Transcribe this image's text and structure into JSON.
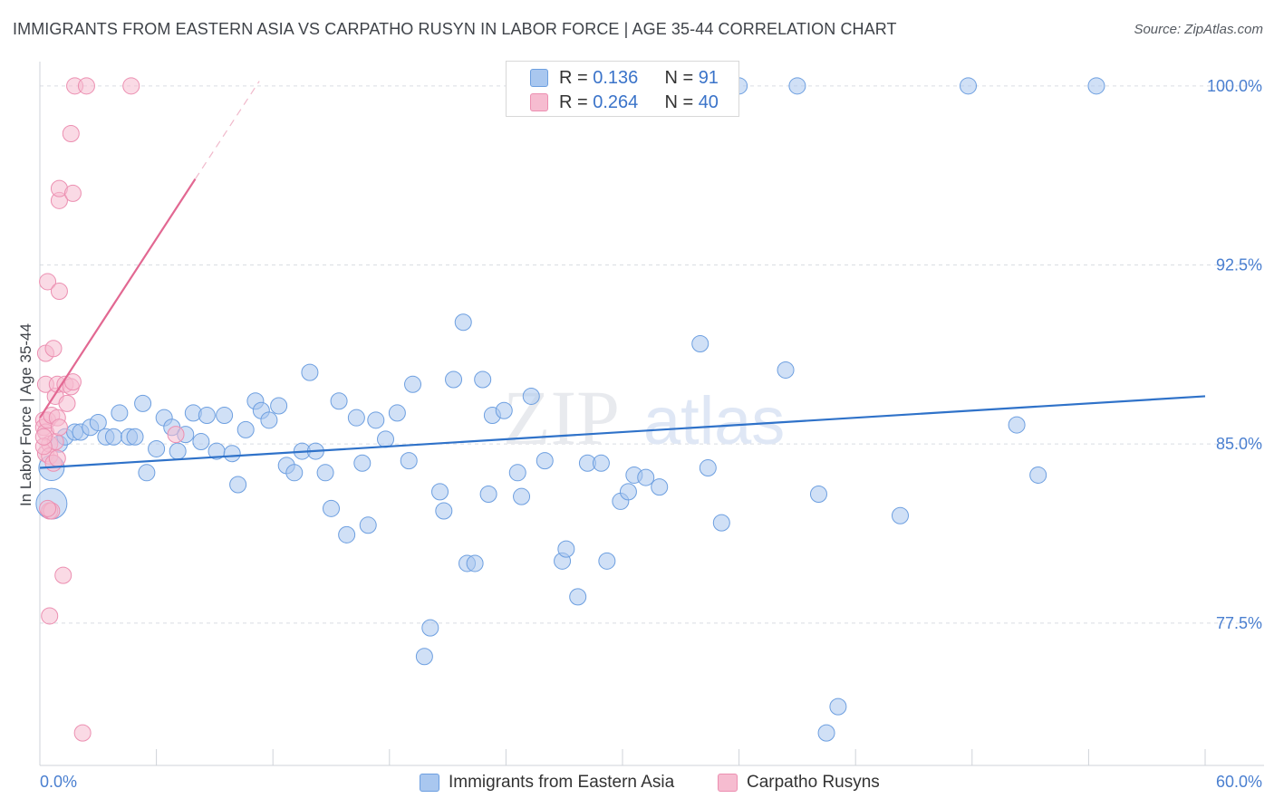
{
  "title": "IMMIGRANTS FROM EASTERN ASIA VS CARPATHO RUSYN IN LABOR FORCE | AGE 35-44 CORRELATION CHART",
  "source": "Source: ZipAtlas.com",
  "watermark": "ZIPatlas",
  "colors": {
    "blue_fill": "#a9c7ef",
    "blue_stroke": "#6d9fe0",
    "blue_line": "#2f72c9",
    "pink_fill": "#f6bcd0",
    "pink_stroke": "#ec8fb1",
    "pink_line": "#e26892",
    "grid": "#d9dde3",
    "tick_text": "#4a7fd0"
  },
  "legend_top": {
    "rows": [
      {
        "r_label": "R =",
        "r_value": "0.136",
        "n_label": "N =",
        "n_value": "91",
        "series": "blue"
      },
      {
        "r_label": "R =",
        "r_value": "0.264",
        "n_label": "N =",
        "n_value": "40",
        "series": "pink"
      }
    ]
  },
  "legend_bottom": {
    "items": [
      {
        "label": "Immigrants from Eastern Asia",
        "series": "blue"
      },
      {
        "label": "Carpatho Rusyns",
        "series": "pink"
      }
    ]
  },
  "chart_data": {
    "type": "scatter",
    "title": "IMMIGRANTS FROM EASTERN ASIA VS CARPATHO RUSYN IN LABOR FORCE | AGE 35-44 CORRELATION CHART",
    "xlabel": "",
    "ylabel": "In Labor Force | Age 35-44",
    "xlim": [
      0,
      60
    ],
    "ylim": [
      71.5,
      100.6
    ],
    "x_tick_labels": [
      "0.0%",
      "60.0%"
    ],
    "y_ticks": [
      77.5,
      85.0,
      92.5,
      100.0
    ],
    "y_tick_labels": [
      "77.5%",
      "85.0%",
      "92.5%",
      "100.0%"
    ],
    "grid": true,
    "series": [
      {
        "name": "Immigrants from Eastern Asia",
        "color": "blue",
        "trend": {
          "x": [
            0,
            60
          ],
          "y": [
            84.0,
            87.0
          ]
        },
        "points": [
          {
            "x": 0.6,
            "y": 82.5,
            "size": 17
          },
          {
            "x": 0.6,
            "y": 84.0,
            "size": 14
          },
          {
            "x": 1.0,
            "y": 85.0
          },
          {
            "x": 1.3,
            "y": 85.3
          },
          {
            "x": 1.8,
            "y": 85.5
          },
          {
            "x": 2.1,
            "y": 85.5
          },
          {
            "x": 2.6,
            "y": 85.7
          },
          {
            "x": 3.0,
            "y": 85.9
          },
          {
            "x": 3.4,
            "y": 85.3
          },
          {
            "x": 3.8,
            "y": 85.3
          },
          {
            "x": 4.1,
            "y": 86.3
          },
          {
            "x": 4.6,
            "y": 85.3
          },
          {
            "x": 4.9,
            "y": 85.3
          },
          {
            "x": 5.3,
            "y": 86.7
          },
          {
            "x": 5.5,
            "y": 83.8
          },
          {
            "x": 6.0,
            "y": 84.8
          },
          {
            "x": 6.4,
            "y": 86.1
          },
          {
            "x": 6.8,
            "y": 85.7
          },
          {
            "x": 7.1,
            "y": 84.7
          },
          {
            "x": 7.5,
            "y": 85.4
          },
          {
            "x": 7.9,
            "y": 86.3
          },
          {
            "x": 8.3,
            "y": 85.1
          },
          {
            "x": 8.6,
            "y": 86.2
          },
          {
            "x": 9.1,
            "y": 84.7
          },
          {
            "x": 9.5,
            "y": 86.2
          },
          {
            "x": 9.9,
            "y": 84.6
          },
          {
            "x": 10.2,
            "y": 83.3
          },
          {
            "x": 10.6,
            "y": 85.6
          },
          {
            "x": 11.1,
            "y": 86.8
          },
          {
            "x": 11.4,
            "y": 86.4
          },
          {
            "x": 11.8,
            "y": 86.0
          },
          {
            "x": 12.3,
            "y": 86.6
          },
          {
            "x": 12.7,
            "y": 84.1
          },
          {
            "x": 13.1,
            "y": 83.8
          },
          {
            "x": 13.5,
            "y": 84.7
          },
          {
            "x": 13.9,
            "y": 88.0
          },
          {
            "x": 14.2,
            "y": 84.7
          },
          {
            "x": 14.7,
            "y": 83.8
          },
          {
            "x": 15.0,
            "y": 82.3
          },
          {
            "x": 15.4,
            "y": 86.8
          },
          {
            "x": 15.8,
            "y": 81.2
          },
          {
            "x": 16.3,
            "y": 86.1
          },
          {
            "x": 16.6,
            "y": 84.2
          },
          {
            "x": 16.9,
            "y": 81.6
          },
          {
            "x": 17.3,
            "y": 86.0
          },
          {
            "x": 17.8,
            "y": 85.2
          },
          {
            "x": 18.4,
            "y": 86.3
          },
          {
            "x": 19.0,
            "y": 84.3
          },
          {
            "x": 19.2,
            "y": 87.5
          },
          {
            "x": 19.8,
            "y": 76.1
          },
          {
            "x": 20.1,
            "y": 77.3
          },
          {
            "x": 20.6,
            "y": 83.0
          },
          {
            "x": 20.8,
            "y": 82.2
          },
          {
            "x": 21.3,
            "y": 87.7
          },
          {
            "x": 21.8,
            "y": 90.1
          },
          {
            "x": 22.0,
            "y": 80.0
          },
          {
            "x": 22.4,
            "y": 80.0
          },
          {
            "x": 22.8,
            "y": 87.7
          },
          {
            "x": 23.1,
            "y": 82.9
          },
          {
            "x": 23.3,
            "y": 86.2
          },
          {
            "x": 23.9,
            "y": 86.4
          },
          {
            "x": 24.6,
            "y": 83.8
          },
          {
            "x": 24.8,
            "y": 82.8
          },
          {
            "x": 25.3,
            "y": 87.0
          },
          {
            "x": 26.0,
            "y": 84.3
          },
          {
            "x": 26.9,
            "y": 80.1
          },
          {
            "x": 27.1,
            "y": 80.6
          },
          {
            "x": 27.7,
            "y": 78.6
          },
          {
            "x": 28.2,
            "y": 84.2
          },
          {
            "x": 28.9,
            "y": 84.2
          },
          {
            "x": 29.2,
            "y": 80.1
          },
          {
            "x": 29.9,
            "y": 82.6
          },
          {
            "x": 30.3,
            "y": 83.0
          },
          {
            "x": 30.6,
            "y": 83.7
          },
          {
            "x": 31.2,
            "y": 83.6
          },
          {
            "x": 31.9,
            "y": 83.2
          },
          {
            "x": 34.0,
            "y": 89.2
          },
          {
            "x": 34.4,
            "y": 84.0
          },
          {
            "x": 35.1,
            "y": 81.7
          },
          {
            "x": 36.0,
            "y": 100.0
          },
          {
            "x": 38.4,
            "y": 88.1
          },
          {
            "x": 39.0,
            "y": 100.0
          },
          {
            "x": 40.1,
            "y": 82.9
          },
          {
            "x": 40.5,
            "y": 72.9
          },
          {
            "x": 41.1,
            "y": 74.0
          },
          {
            "x": 44.3,
            "y": 82.0
          },
          {
            "x": 47.8,
            "y": 100.0
          },
          {
            "x": 50.3,
            "y": 85.8
          },
          {
            "x": 51.4,
            "y": 83.7
          },
          {
            "x": 54.4,
            "y": 100.0
          }
        ]
      },
      {
        "name": "Carpatho Rusyns",
        "color": "pink",
        "trend": {
          "x": [
            0,
            8.0
          ],
          "y": [
            86.1,
            96.1
          ]
        },
        "trend_dashed": {
          "x": [
            8.0,
            11.3
          ],
          "y": [
            96.1,
            100.2
          ]
        },
        "points": [
          {
            "x": 0.2,
            "y": 86.0
          },
          {
            "x": 0.2,
            "y": 85.7
          },
          {
            "x": 0.3,
            "y": 85.5
          },
          {
            "x": 0.3,
            "y": 84.6
          },
          {
            "x": 0.3,
            "y": 87.5
          },
          {
            "x": 0.3,
            "y": 88.8
          },
          {
            "x": 0.4,
            "y": 91.8
          },
          {
            "x": 0.4,
            "y": 86.0
          },
          {
            "x": 0.5,
            "y": 85.0
          },
          {
            "x": 0.5,
            "y": 84.5
          },
          {
            "x": 0.5,
            "y": 82.2
          },
          {
            "x": 0.5,
            "y": 77.8
          },
          {
            "x": 0.6,
            "y": 86.2
          },
          {
            "x": 0.6,
            "y": 82.2
          },
          {
            "x": 0.7,
            "y": 84.2
          },
          {
            "x": 0.7,
            "y": 89.0
          },
          {
            "x": 0.8,
            "y": 87.0
          },
          {
            "x": 0.8,
            "y": 85.1
          },
          {
            "x": 0.9,
            "y": 87.5
          },
          {
            "x": 0.9,
            "y": 86.1
          },
          {
            "x": 1.0,
            "y": 95.2
          },
          {
            "x": 1.0,
            "y": 91.4
          },
          {
            "x": 1.0,
            "y": 85.7
          },
          {
            "x": 1.0,
            "y": 95.7
          },
          {
            "x": 1.2,
            "y": 79.5
          },
          {
            "x": 1.3,
            "y": 87.5
          },
          {
            "x": 1.4,
            "y": 86.7
          },
          {
            "x": 1.6,
            "y": 87.4
          },
          {
            "x": 1.6,
            "y": 98.0
          },
          {
            "x": 1.7,
            "y": 87.6
          },
          {
            "x": 1.7,
            "y": 95.5
          },
          {
            "x": 1.8,
            "y": 100.0
          },
          {
            "x": 2.2,
            "y": 72.9
          },
          {
            "x": 2.4,
            "y": 100.0
          },
          {
            "x": 4.7,
            "y": 100.0
          },
          {
            "x": 7.0,
            "y": 85.4
          },
          {
            "x": 0.2,
            "y": 84.9
          },
          {
            "x": 0.9,
            "y": 84.4
          },
          {
            "x": 0.2,
            "y": 85.3
          },
          {
            "x": 0.4,
            "y": 82.3
          }
        ]
      }
    ]
  }
}
